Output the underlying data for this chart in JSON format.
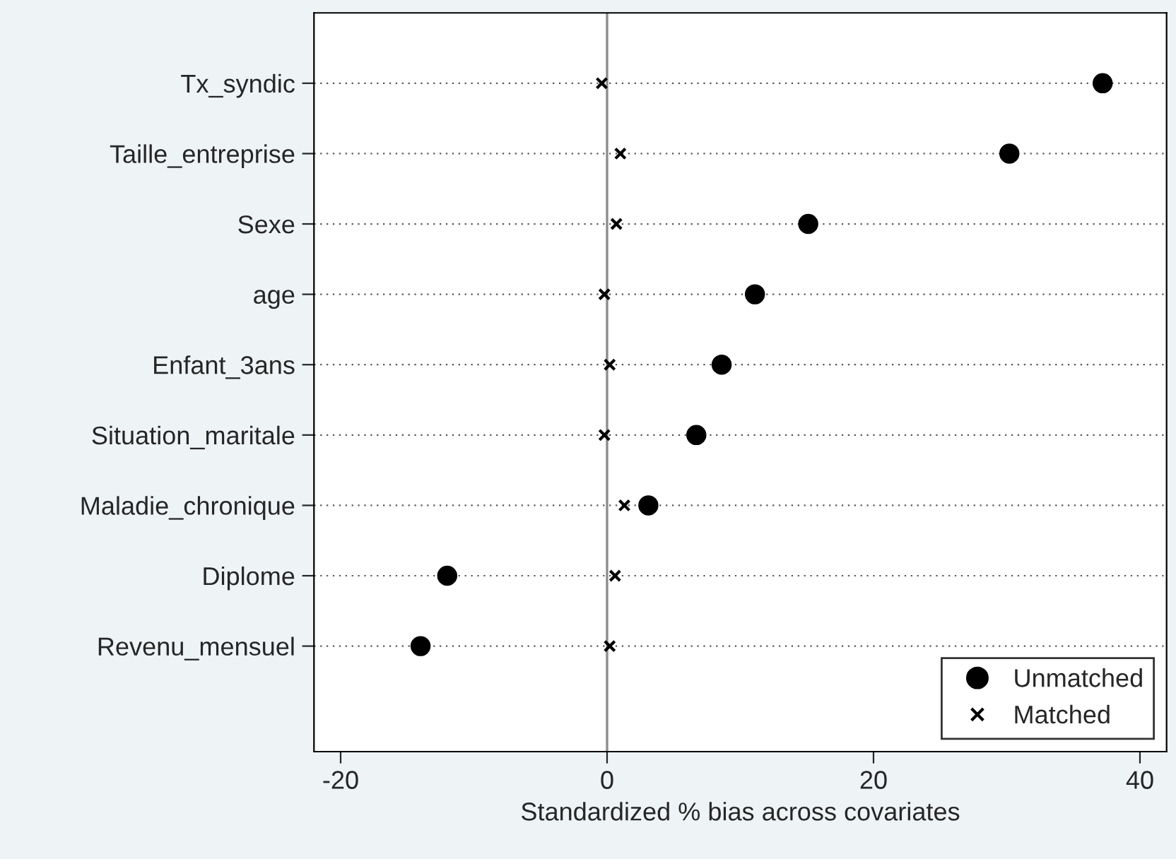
{
  "chart_data": {
    "type": "scatter",
    "orientation": "horizontal",
    "xlabel": "Standardized % bias across covariates",
    "categories": [
      "Tx_syndic",
      "Taille_entreprise",
      "Sexe",
      "age",
      "Enfant_3ans",
      "Situation_maritale",
      "Maladie_chronique",
      "Diplome",
      "Revenu_mensuel"
    ],
    "series": [
      {
        "name": "Unmatched",
        "color": "#000000",
        "marker": "circle",
        "values": [
          37.2,
          30.2,
          15.1,
          11.1,
          8.6,
          6.7,
          3.1,
          -12.0,
          -14.0
        ]
      },
      {
        "name": "Matched",
        "color": "#000000",
        "marker": "cross",
        "values": [
          -0.4,
          1.0,
          0.7,
          -0.2,
          0.2,
          -0.2,
          1.3,
          0.6,
          0.2
        ]
      }
    ],
    "xlim": [
      -22,
      42
    ],
    "xticks": [
      {
        "value": -20,
        "label": "-20"
      },
      0,
      20,
      40
    ],
    "ref_lines": [
      {
        "axis": "x",
        "value": 0,
        "color": "#8c8c8c"
      }
    ],
    "grid": "y",
    "legend": "bottom right"
  }
}
